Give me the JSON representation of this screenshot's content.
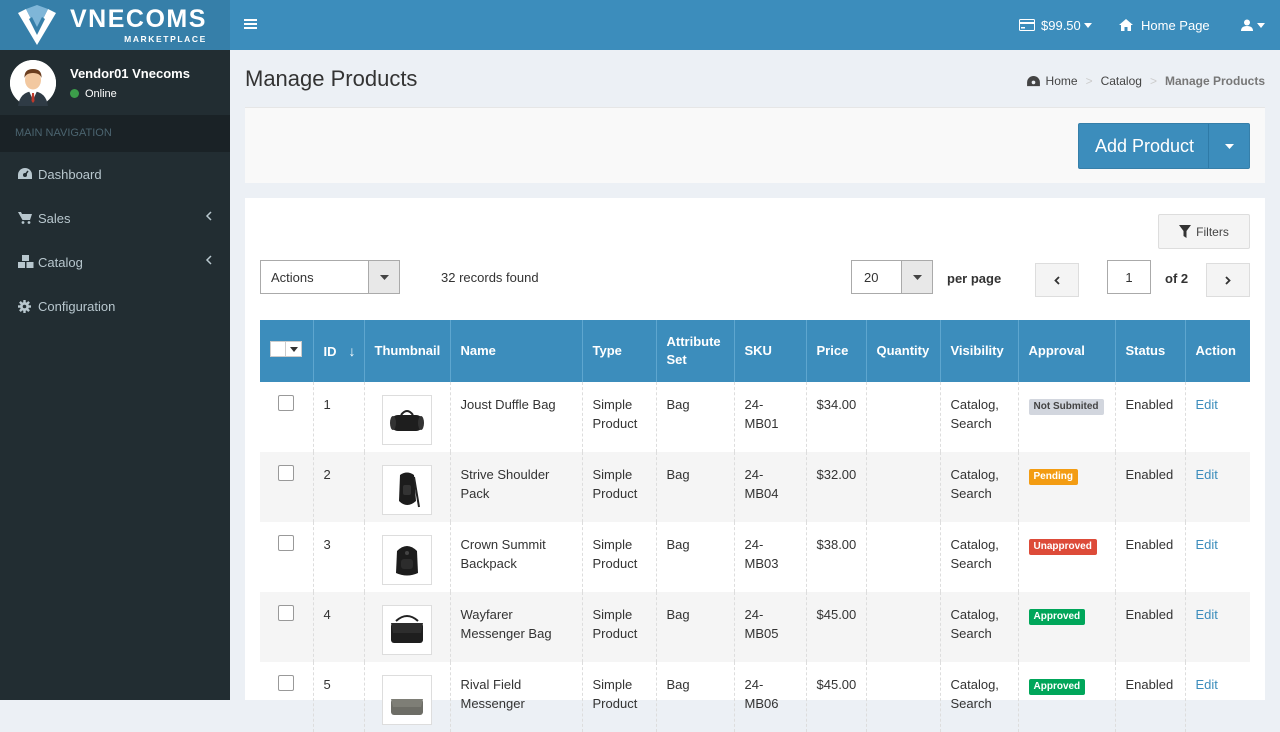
{
  "brand": {
    "title": "VNECOMS",
    "subtitle": "MARKETPLACE"
  },
  "user": {
    "name": "Vendor01 Vnecoms",
    "status": "Online"
  },
  "sidebar": {
    "header": "MAIN NAVIGATION",
    "items": [
      {
        "label": "Dashboard",
        "icon": "dashboard-icon"
      },
      {
        "label": "Sales",
        "icon": "cart-icon"
      },
      {
        "label": "Catalog",
        "icon": "cubes-icon"
      },
      {
        "label": "Configuration",
        "icon": "gear-icon"
      }
    ]
  },
  "topbar": {
    "balance": "$99.50",
    "home_page": "Home Page"
  },
  "page": {
    "title": "Manage Products"
  },
  "breadcrumb": [
    "Home",
    "Catalog",
    "Manage Products"
  ],
  "toolbar": {
    "add_product": "Add Product",
    "filters": "Filters"
  },
  "grid": {
    "actions_label": "Actions",
    "records_found": "32 records found",
    "per_page_value": "20",
    "per_page_label": "per page",
    "current_page": "1",
    "of_pages": "of 2",
    "columns": [
      "ID",
      "Thumbnail",
      "Name",
      "Type",
      "Attribute Set",
      "SKU",
      "Price",
      "Quantity",
      "Visibility",
      "Approval",
      "Status",
      "Action"
    ],
    "rows": [
      {
        "id": "1",
        "name": "Joust Duffle Bag",
        "type": "Simple Product",
        "attribute_set": "Bag",
        "sku": "24-MB01",
        "price": "$34.00",
        "quantity": "",
        "visibility": "Catalog, Search",
        "approval": "Not Submited",
        "approval_color": "#d2d6de",
        "approval_text_color": "#444444",
        "status": "Enabled",
        "action": "Edit",
        "thumb": "duffle"
      },
      {
        "id": "2",
        "name": "Strive Shoulder Pack",
        "type": "Simple Product",
        "attribute_set": "Bag",
        "sku": "24-MB04",
        "price": "$32.00",
        "quantity": "",
        "visibility": "Catalog, Search",
        "approval": "Pending",
        "approval_color": "#f39c12",
        "approval_text_color": "#ffffff",
        "status": "Enabled",
        "action": "Edit",
        "thumb": "shoulder"
      },
      {
        "id": "3",
        "name": "Crown Summit Backpack",
        "type": "Simple Product",
        "attribute_set": "Bag",
        "sku": "24-MB03",
        "price": "$38.00",
        "quantity": "",
        "visibility": "Catalog, Search",
        "approval": "Unapproved",
        "approval_color": "#dd4b39",
        "approval_text_color": "#ffffff",
        "status": "Enabled",
        "action": "Edit",
        "thumb": "backpack"
      },
      {
        "id": "4",
        "name": "Wayfarer Messenger Bag",
        "type": "Simple Product",
        "attribute_set": "Bag",
        "sku": "24-MB05",
        "price": "$45.00",
        "quantity": "",
        "visibility": "Catalog, Search",
        "approval": "Approved",
        "approval_color": "#00a65a",
        "approval_text_color": "#ffffff",
        "status": "Enabled",
        "action": "Edit",
        "thumb": "messenger"
      },
      {
        "id": "5",
        "name": "Rival Field Messenger",
        "type": "Simple Product",
        "attribute_set": "Bag",
        "sku": "24-MB06",
        "price": "$45.00",
        "quantity": "",
        "visibility": "Catalog, Search",
        "approval": "Approved",
        "approval_color": "#00a65a",
        "approval_text_color": "#ffffff",
        "status": "Enabled",
        "action": "Edit",
        "thumb": "field"
      }
    ]
  }
}
